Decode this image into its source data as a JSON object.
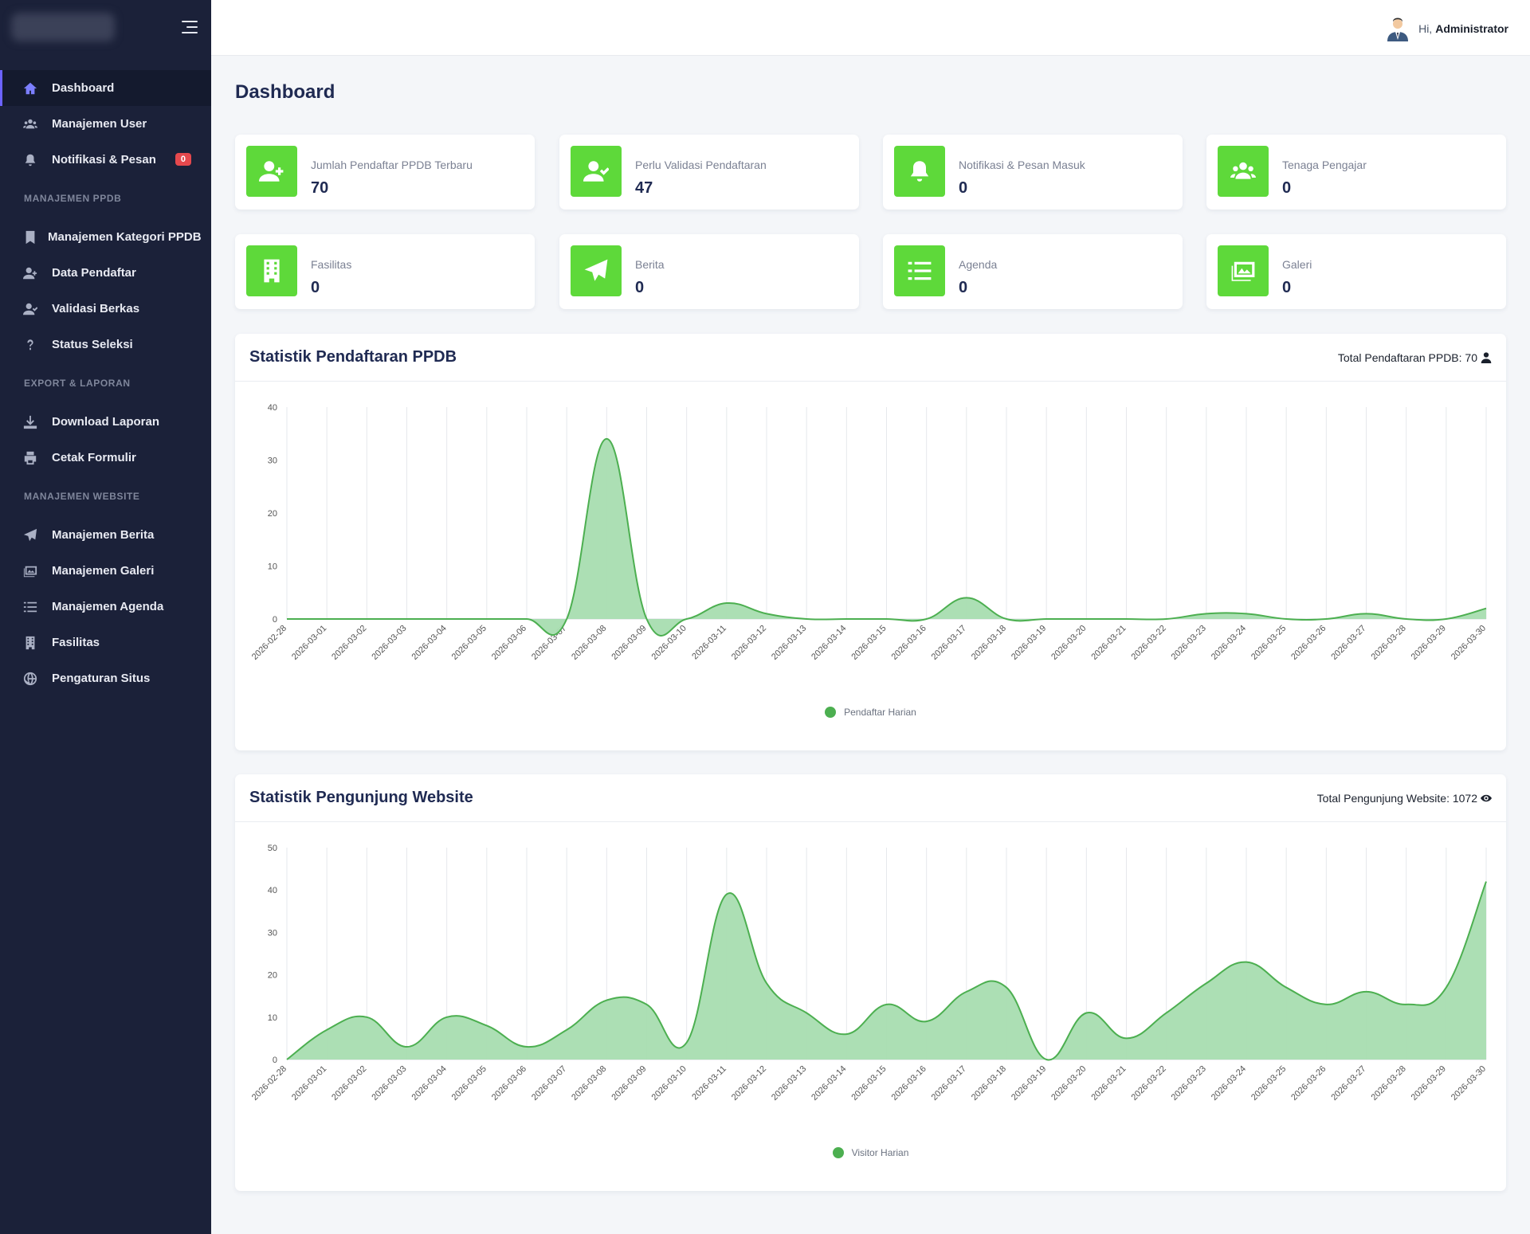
{
  "sidebar": {
    "items": [
      {
        "label": "Dashboard"
      },
      {
        "label": "Manajemen User"
      },
      {
        "label": "Notifikasi & Pesan",
        "badge": "0"
      }
    ],
    "sections": [
      {
        "title": "MANAJEMEN PPDB",
        "items": [
          {
            "label": "Manajemen Kategori PPDB"
          },
          {
            "label": "Data Pendaftar"
          },
          {
            "label": "Validasi Berkas"
          },
          {
            "label": "Status Seleksi"
          }
        ]
      },
      {
        "title": "EXPORT & LAPORAN",
        "items": [
          {
            "label": "Download Laporan"
          },
          {
            "label": "Cetak Formulir"
          }
        ]
      },
      {
        "title": "MANAJEMEN WEBSITE",
        "items": [
          {
            "label": "Manajemen Berita"
          },
          {
            "label": "Manajemen Galeri"
          },
          {
            "label": "Manajemen Agenda"
          },
          {
            "label": "Fasilitas"
          },
          {
            "label": "Pengaturan Situs"
          }
        ]
      }
    ]
  },
  "header": {
    "greeting": "Hi,",
    "username": "Administrator"
  },
  "page_title": "Dashboard",
  "cards": [
    {
      "label": "Jumlah Pendaftar PPDB Terbaru",
      "value": "70",
      "icon": "user-plus-icon"
    },
    {
      "label": "Perlu Validasi Pendaftaran",
      "value": "47",
      "icon": "user-check-icon"
    },
    {
      "label": "Notifikasi & Pesan Masuk",
      "value": "0",
      "icon": "bell-icon"
    },
    {
      "label": "Tenaga Pengajar",
      "value": "0",
      "icon": "users-icon"
    },
    {
      "label": "Fasilitas",
      "value": "0",
      "icon": "building-icon"
    },
    {
      "label": "Berita",
      "value": "0",
      "icon": "paper-plane-icon"
    },
    {
      "label": "Agenda",
      "value": "0",
      "icon": "list-icon"
    },
    {
      "label": "Galeri",
      "value": "0",
      "icon": "images-icon"
    }
  ],
  "colors": {
    "accent": "#6c63ff",
    "card_icon_bg": "#5ed93a",
    "series_line": "#4caf50",
    "series_fill": "#a8ddb0",
    "sidebar_bg": "#1b2139"
  },
  "chart_data": [
    {
      "type": "area",
      "title": "Statistik Pendaftaran PPDB",
      "total_label": "Total Pendaftaran PPDB: 70",
      "x": [
        "2026-02-28",
        "2026-03-01",
        "2026-03-02",
        "2026-03-03",
        "2026-03-04",
        "2026-03-05",
        "2026-03-06",
        "2026-03-07",
        "2026-03-08",
        "2026-03-09",
        "2026-03-10",
        "2026-03-11",
        "2026-03-12",
        "2026-03-13",
        "2026-03-14",
        "2026-03-15",
        "2026-03-16",
        "2026-03-17",
        "2026-03-18",
        "2026-03-19",
        "2026-03-20",
        "2026-03-21",
        "2026-03-22",
        "2026-03-23",
        "2026-03-24",
        "2026-03-25",
        "2026-03-26",
        "2026-03-27",
        "2026-03-28",
        "2026-03-29",
        "2026-03-30"
      ],
      "series": [
        {
          "name": "Pendaftar Harian",
          "values": [
            0,
            0,
            0,
            0,
            0,
            0,
            0,
            0,
            34,
            0,
            0,
            3,
            1,
            0,
            0,
            0,
            0,
            4,
            0,
            0,
            0,
            0,
            0,
            1,
            1,
            0,
            0,
            1,
            0,
            0,
            2
          ]
        }
      ],
      "ylim": [
        0,
        40
      ],
      "yticks": [
        "0",
        "10",
        "20",
        "30",
        "40"
      ],
      "grid": "vertical",
      "legend": "bottom"
    },
    {
      "type": "area",
      "title": "Statistik Pengunjung Website",
      "total_label": "Total Pengunjung Website: 1072",
      "x": [
        "2026-02-28",
        "2026-03-01",
        "2026-03-02",
        "2026-03-03",
        "2026-03-04",
        "2026-03-05",
        "2026-03-06",
        "2026-03-07",
        "2026-03-08",
        "2026-03-09",
        "2026-03-10",
        "2026-03-11",
        "2026-03-12",
        "2026-03-13",
        "2026-03-14",
        "2026-03-15",
        "2026-03-16",
        "2026-03-17",
        "2026-03-18",
        "2026-03-19",
        "2026-03-20",
        "2026-03-21",
        "2026-03-22",
        "2026-03-23",
        "2026-03-24",
        "2026-03-25",
        "2026-03-26",
        "2026-03-27",
        "2026-03-28",
        "2026-03-29",
        "2026-03-30"
      ],
      "series": [
        {
          "name": "Visitor Harian",
          "values": [
            0,
            7,
            10,
            3,
            10,
            8,
            3,
            7,
            14,
            13,
            4,
            39,
            18,
            11,
            6,
            13,
            9,
            16,
            17,
            0,
            11,
            5,
            11,
            18,
            23,
            17,
            13,
            16,
            13,
            17,
            42
          ]
        }
      ],
      "ylim": [
        0,
        50
      ],
      "yticks": [
        "0",
        "10",
        "20",
        "30",
        "40",
        "50"
      ],
      "grid": "vertical",
      "legend": "bottom"
    }
  ]
}
